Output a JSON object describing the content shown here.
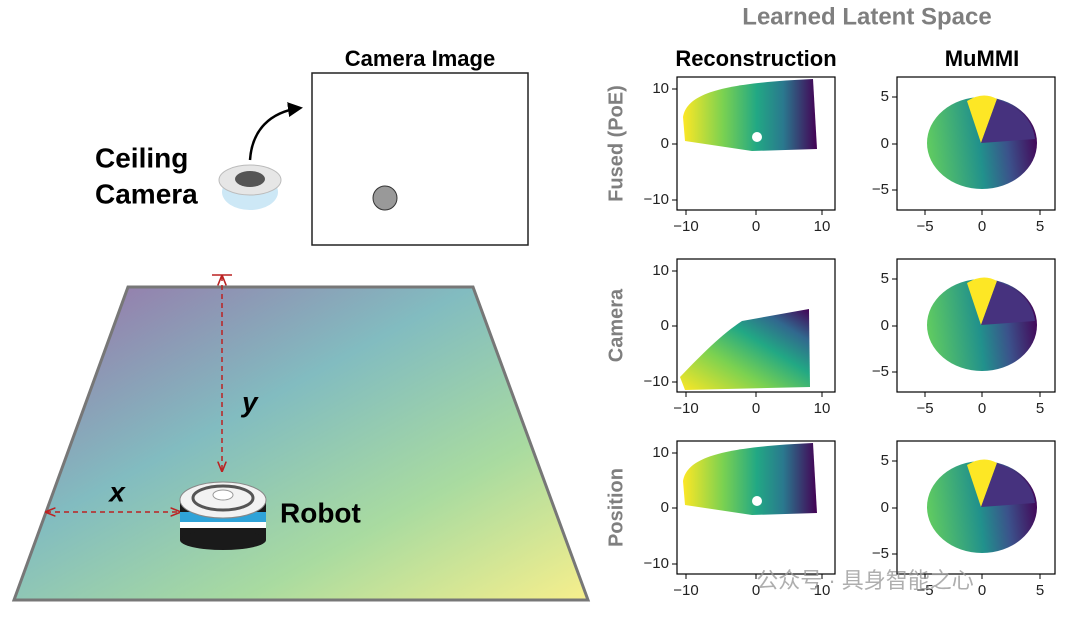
{
  "left": {
    "camera_label": [
      "Ceiling",
      "Camera"
    ],
    "camera_image_title": "Camera Image",
    "x_label": "x",
    "y_label": "y",
    "robot_label": "Robot"
  },
  "right": {
    "title": "Learned Latent Space",
    "column_titles": [
      "Reconstruction",
      "MuMMI"
    ],
    "row_labels": [
      "Fused (PoE)",
      "Camera",
      "Position"
    ],
    "panels": [
      [
        {
          "xticks": [
            "−10",
            "0",
            "10"
          ],
          "yticks": [
            "10",
            "0",
            "−10"
          ]
        },
        {
          "xticks": [
            "−5",
            "0",
            "5"
          ],
          "yticks": [
            "5",
            "0",
            "−5"
          ]
        }
      ],
      [
        {
          "xticks": [
            "−10",
            "0",
            "10"
          ],
          "yticks": [
            "10",
            "0",
            "−10"
          ]
        },
        {
          "xticks": [
            "−5",
            "0",
            "5"
          ],
          "yticks": [
            "5",
            "0",
            "−5"
          ]
        }
      ],
      [
        {
          "xticks": [
            "−10",
            "0",
            "10"
          ],
          "yticks": [
            "10",
            "0",
            "−10"
          ]
        },
        {
          "xticks": [
            "−5",
            "0",
            "5"
          ],
          "yticks": [
            "5",
            "0",
            "−5"
          ]
        }
      ]
    ]
  },
  "watermark": "公众号 · 具身智能之心"
}
